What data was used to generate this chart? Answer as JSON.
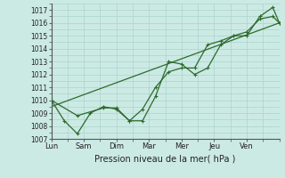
{
  "xlabel": "Pression niveau de la mer( hPa )",
  "background_color": "#cceae4",
  "grid_color": "#aad4cc",
  "line_color": "#2d6a2d",
  "ylim": [
    1007,
    1017.5
  ],
  "xlim": [
    0,
    7
  ],
  "day_labels": [
    "Lun",
    "Sam",
    "Dim",
    "Mar",
    "Mer",
    "Jeu",
    "Ven"
  ],
  "tick_positions": [
    0,
    1,
    2,
    3,
    4,
    5,
    6,
    7
  ],
  "series1_x": [
    0,
    0.4,
    0.8,
    1.2,
    1.6,
    2.0,
    2.4,
    2.8,
    3.2,
    3.6,
    4.0,
    4.4,
    4.8,
    5.2,
    5.6,
    6.0,
    6.4,
    6.8,
    7.0
  ],
  "series1_y": [
    1010.0,
    1008.4,
    1007.4,
    1009.0,
    1009.5,
    1009.3,
    1008.4,
    1008.4,
    1010.3,
    1013.0,
    1012.8,
    1012.0,
    1012.5,
    1014.3,
    1015.0,
    1015.0,
    1016.5,
    1017.2,
    1016.0
  ],
  "series2_x": [
    0,
    0.8,
    1.6,
    2.0,
    2.4,
    2.8,
    3.2,
    3.6,
    4.0,
    4.4,
    4.8,
    5.2,
    5.6,
    6.0,
    6.4,
    6.8,
    7.0
  ],
  "series2_y": [
    1010.0,
    1008.8,
    1009.4,
    1009.4,
    1008.4,
    1009.3,
    1011.0,
    1012.2,
    1012.5,
    1012.5,
    1014.3,
    1014.6,
    1015.0,
    1015.3,
    1016.3,
    1016.5,
    1016.0
  ],
  "trend_x": [
    0,
    7.0
  ],
  "trend_y": [
    1009.5,
    1016.0
  ],
  "yticks": [
    1007,
    1008,
    1009,
    1010,
    1011,
    1012,
    1013,
    1014,
    1015,
    1016,
    1017
  ],
  "xtick_major": [
    0,
    1,
    2,
    3,
    4,
    5,
    6,
    7
  ]
}
